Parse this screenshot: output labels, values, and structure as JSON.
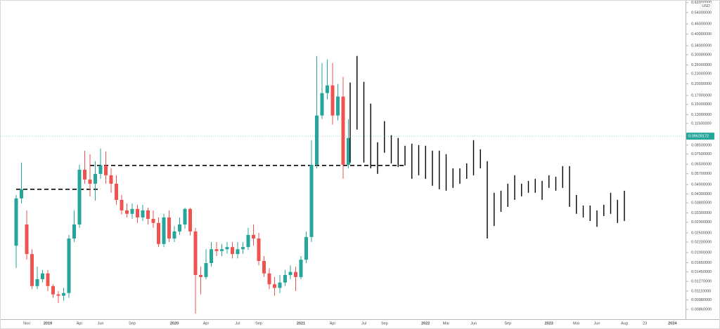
{
  "chart_data": [
    {
      "type": "candlestick",
      "categories": [
        null,
        null,
        "Nov",
        null,
        null,
        null,
        "2019",
        null,
        null,
        null,
        null,
        null,
        "Apr",
        null,
        null,
        null,
        "Jun",
        null,
        null,
        null,
        null,
        null,
        "Sep",
        null,
        null,
        null,
        null,
        null,
        null,
        null,
        "2020",
        null,
        null,
        null,
        null,
        null,
        "Apr",
        null,
        null,
        null,
        null,
        null,
        "Jul",
        null,
        null,
        null,
        "Sep",
        null,
        null,
        null,
        null,
        null,
        null,
        null,
        "2021",
        null,
        null,
        null,
        null,
        null,
        "Apr",
        null,
        null,
        null
      ],
      "open": [
        0.0209,
        0.0404,
        0.0281,
        0.0186,
        0.0119,
        0.0131,
        0.0142,
        0.0119,
        0.0106,
        0.0104,
        0.0108,
        0.0231,
        0.0281,
        0.0603,
        0.0526,
        0.0496,
        0.0569,
        0.064,
        0.0558,
        0.0496,
        0.0396,
        0.0342,
        0.0326,
        0.0349,
        0.031,
        0.0342,
        0.0304,
        0.0287,
        0.0214,
        0.031,
        0.0231,
        0.0255,
        0.0281,
        0.0349,
        0.0255,
        0.0139,
        0.0135,
        0.0164,
        0.0199,
        0.0194,
        0.0199,
        0.0205,
        0.0186,
        0.0199,
        0.0205,
        0.0243,
        0.0231,
        0.0169,
        0.0142,
        0.0122,
        0.0116,
        0.0125,
        0.0139,
        0.0145,
        0.0135,
        0.0172,
        0.0236,
        0.0646,
        0.1284,
        0.1756,
        0.1955,
        0.1284,
        0.1672,
        0.0646
      ],
      "high": [
        0.0424,
        0.0666,
        0.0342,
        0.0199,
        0.0156,
        0.0149,
        0.0149,
        0.0122,
        0.0111,
        0.0116,
        0.0243,
        0.0342,
        0.0646,
        0.0786,
        0.0749,
        0.0679,
        0.081,
        0.0779,
        0.0615,
        0.0558,
        0.0424,
        0.0377,
        0.0377,
        0.037,
        0.037,
        0.0355,
        0.0342,
        0.031,
        0.0326,
        0.0342,
        0.0275,
        0.031,
        0.0355,
        0.0355,
        0.0268,
        0.0156,
        0.0199,
        0.022,
        0.022,
        0.0214,
        0.022,
        0.022,
        0.022,
        0.022,
        0.0268,
        0.0281,
        0.025,
        0.0181,
        0.0153,
        0.0135,
        0.0139,
        0.0149,
        0.0159,
        0.0156,
        0.0181,
        0.0255,
        0.0911,
        0.2948,
        0.2673,
        0.2807,
        0.2673,
        0.1994,
        0.2199,
        0.1222
      ],
      "low": [
        0.0153,
        0.0377,
        0.0172,
        0.0114,
        0.0114,
        0.0125,
        0.0111,
        0.0101,
        0.0094,
        0.0097,
        0.0101,
        0.022,
        0.0268,
        0.0496,
        0.0416,
        0.0392,
        0.0531,
        0.0496,
        0.0437,
        0.037,
        0.0323,
        0.031,
        0.0304,
        0.0287,
        0.0295,
        0.0281,
        0.0268,
        0.0205,
        0.0205,
        0.022,
        0.022,
        0.0243,
        0.0265,
        0.0241,
        0.0081,
        0.0106,
        0.0131,
        0.0156,
        0.0181,
        0.0181,
        0.0187,
        0.0175,
        0.0175,
        0.0187,
        0.0197,
        0.0209,
        0.0159,
        0.0135,
        0.0114,
        0.0104,
        0.0108,
        0.0119,
        0.0131,
        0.0111,
        0.0131,
        0.0164,
        0.022,
        0.0615,
        0.1222,
        0.1607,
        0.1131,
        0.1199,
        0.0531,
        0.0615
      ],
      "close": [
        0.0404,
        0.0459,
        0.0186,
        0.0119,
        0.0131,
        0.0142,
        0.0119,
        0.0106,
        0.0104,
        0.0108,
        0.0231,
        0.0281,
        0.0603,
        0.0526,
        0.0496,
        0.0569,
        0.064,
        0.0558,
        0.0496,
        0.0396,
        0.0342,
        0.0326,
        0.0349,
        0.031,
        0.0342,
        0.0304,
        0.0287,
        0.0214,
        0.031,
        0.0231,
        0.0255,
        0.0281,
        0.0349,
        0.0255,
        0.0139,
        0.0135,
        0.0164,
        0.0199,
        0.0194,
        0.0199,
        0.0205,
        0.0186,
        0.0199,
        0.0205,
        0.0243,
        0.0231,
        0.0169,
        0.0142,
        0.0122,
        0.0116,
        0.0125,
        0.0139,
        0.0145,
        0.0135,
        0.0172,
        0.0236,
        0.0646,
        0.1284,
        0.1756,
        0.1955,
        0.1284,
        0.1672,
        0.0646,
        0.0938
      ],
      "up_color": "#26a69a",
      "down_color": "#ef5350",
      "ylim": [
        0.0075,
        0.643
      ],
      "log_y": true,
      "grid": false,
      "yticks": [
        {
          "value": 0.0086,
          "label": "0.00860000"
        },
        {
          "value": 0.0098,
          "label": "0.00980000"
        },
        {
          "value": 0.0111,
          "label": "0.01110000"
        },
        {
          "value": 0.0127,
          "label": "0.01270000"
        },
        {
          "value": 0.0145,
          "label": "0.01450000"
        },
        {
          "value": 0.0165,
          "label": "0.01650000"
        },
        {
          "value": 0.019,
          "label": "0.01900000"
        },
        {
          "value": 0.022,
          "label": "0.02200000"
        },
        {
          "value": 0.025,
          "label": "0.02500000"
        },
        {
          "value": 0.029,
          "label": "0.02900000"
        },
        {
          "value": 0.033,
          "label": "0.03300000"
        },
        {
          "value": 0.038,
          "label": "0.03800000"
        },
        {
          "value": 0.043,
          "label": "0.04300000"
        },
        {
          "value": 0.049,
          "label": "0.04900000"
        },
        {
          "value": 0.057,
          "label": "0.05700000"
        },
        {
          "value": 0.065,
          "label": "0.06500000"
        },
        {
          "value": 0.075,
          "label": "0.07500000"
        },
        {
          "value": 0.085,
          "label": "0.08500000"
        },
        {
          "value": 0.115,
          "label": "0.11500000"
        },
        {
          "value": 0.13,
          "label": "0.13000000"
        },
        {
          "value": 0.15,
          "label": "0.15000000"
        },
        {
          "value": 0.17,
          "label": "0.17000000"
        },
        {
          "value": 0.2,
          "label": "0.20000000"
        },
        {
          "value": 0.23,
          "label": "0.23000000"
        },
        {
          "value": 0.26,
          "label": "0.26000000"
        },
        {
          "value": 0.3,
          "label": "0.30000000"
        },
        {
          "value": 0.34,
          "label": "0.34000000"
        },
        {
          "value": 0.4,
          "label": "0.40000000"
        },
        {
          "value": 0.46,
          "label": "0.46000000"
        },
        {
          "value": 0.54,
          "label": "0.54000000"
        },
        {
          "value": 0.62,
          "label": "0.62000000"
        }
      ],
      "currency": "USD",
      "last_price": 0.09628172,
      "last_price_color": "#26a69a",
      "levels": [
        0.0459,
        0.064
      ]
    },
    {
      "type": "hlbar",
      "categories": [
        null,
        null,
        "Jul",
        null,
        null,
        "Sep",
        null,
        null,
        null,
        null,
        null,
        "2022",
        null,
        null,
        "Mar",
        null,
        null,
        null,
        "Jun",
        null,
        null,
        null,
        null,
        "Sep",
        null,
        null,
        null,
        null,
        null,
        "2023",
        null,
        null,
        null,
        "Mar",
        null,
        null,
        "Jun",
        null,
        null,
        null,
        "Aug",
        null,
        null,
        "23",
        null,
        null,
        null,
        "2024"
      ],
      "high": [
        0.2034,
        0.2948,
        0.2054,
        0.1516,
        0.0884,
        0.1187,
        0.0976,
        0.0938,
        0.0842,
        0.0867,
        0.085,
        0.0842,
        0.0786,
        0.0786,
        0.0749,
        0.0615,
        0.0615,
        0.0659,
        0.0911,
        0.0802,
        0.0679,
        0.0437,
        0.045,
        0.0496,
        0.0558,
        0.0496,
        0.0516,
        0.0531,
        0.0516,
        0.0558,
        0.0547,
        0.0634,
        0.0634,
        0.0424,
        0.0366,
        0.0366,
        0.0342,
        0.037,
        0.0437,
        0.0396,
        0.045,
        null,
        null,
        null,
        null,
        null,
        null,
        null
      ],
      "low": [
        0.0666,
        0.1055,
        0.0666,
        0.0615,
        0.0569,
        0.0764,
        0.0659,
        0.0627,
        0.064,
        0.0531,
        0.0558,
        0.0531,
        0.0482,
        0.0459,
        0.045,
        0.0468,
        0.0496,
        0.0531,
        0.0558,
        0.0615,
        0.0231,
        0.0275,
        0.0335,
        0.0359,
        0.0396,
        0.0416,
        0.0437,
        0.0437,
        0.0396,
        0.0468,
        0.045,
        0.0468,
        0.0359,
        0.0326,
        0.031,
        0.0295,
        0.0272,
        0.0316,
        0.0326,
        0.0287,
        0.0295,
        null,
        null,
        null,
        null,
        null,
        null,
        null
      ],
      "color": "#000000"
    }
  ]
}
